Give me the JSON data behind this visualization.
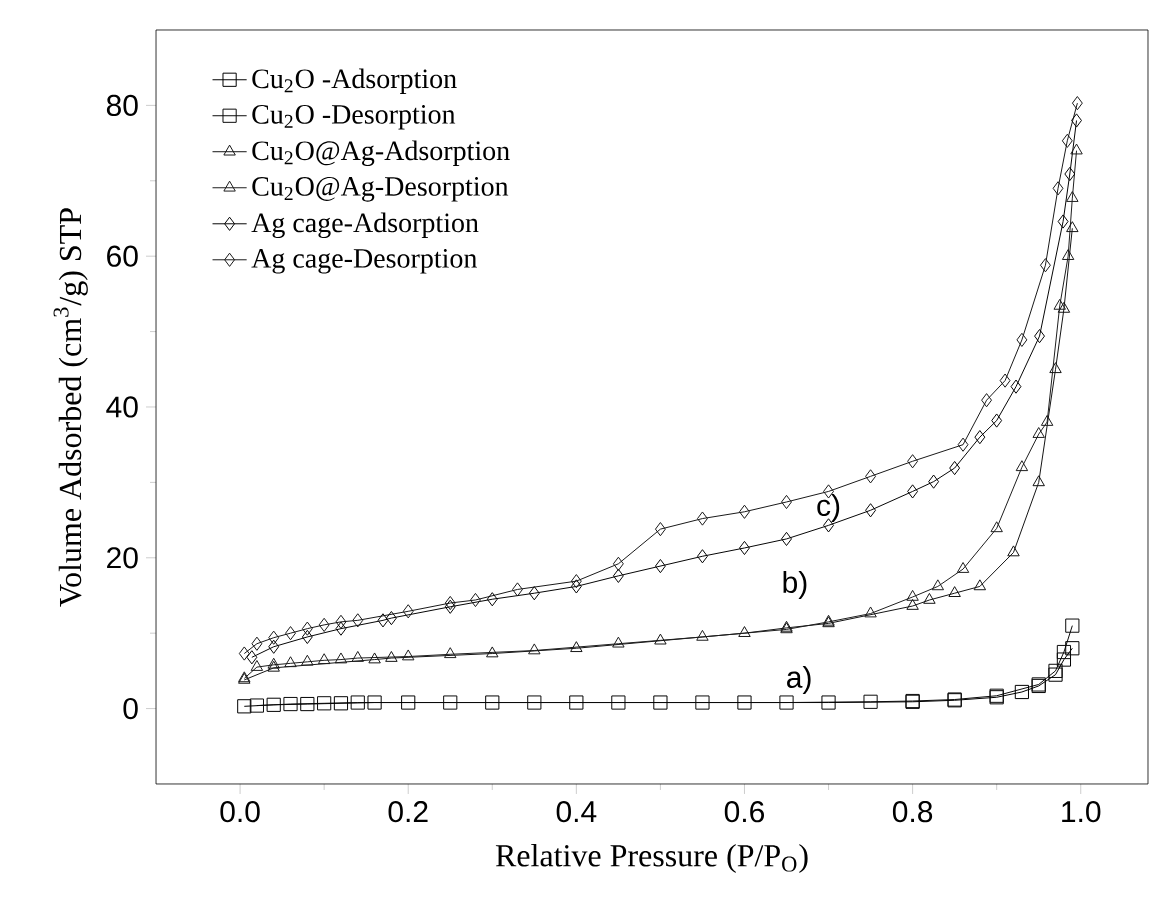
{
  "chart_data": {
    "type": "line",
    "xlabel": "Relative Pressure (P/P$_{O}$)",
    "ylabel": "Volume Adsorbed (cm$^{3}$/g) STP",
    "xlim": [
      -0.1,
      1.08
    ],
    "ylim": [
      -10,
      90
    ],
    "xticks": [
      {
        "value": 0,
        "label": "0.0"
      },
      0.2,
      0.4,
      0.6,
      0.8,
      {
        "value": 1,
        "label": "1.0"
      }
    ],
    "yticks": [
      0,
      20,
      40,
      60,
      80
    ],
    "legend": "top left",
    "grid": false,
    "annotations": [
      "a)",
      "b)",
      "c)"
    ],
    "series": [
      {
        "name": "Cu$_{2}$O -Adsorption",
        "color": "#000000",
        "marker": "square",
        "x": [
          0.005,
          0.04,
          0.08,
          0.12,
          0.16,
          0.2,
          0.3,
          0.4,
          0.5,
          0.6,
          0.7,
          0.8,
          0.85,
          0.9,
          0.93,
          0.95,
          0.97,
          0.98,
          0.99
        ],
        "values": [
          0.3,
          0.5,
          0.6,
          0.7,
          0.8,
          0.8,
          0.8,
          0.8,
          0.8,
          0.8,
          0.8,
          0.9,
          1.1,
          1.5,
          2.2,
          3,
          4.5,
          6.5,
          8
        ]
      },
      {
        "name": "Cu$_{2}$O -Desorption",
        "color": "#0a0a0a",
        "marker": "square",
        "x": [
          0.02,
          0.06,
          0.1,
          0.14,
          0.25,
          0.35,
          0.45,
          0.55,
          0.65,
          0.75,
          0.8,
          0.85,
          0.9,
          0.95,
          0.97,
          0.98,
          0.99
        ],
        "values": [
          0.4,
          0.6,
          0.7,
          0.8,
          0.8,
          0.8,
          0.8,
          0.8,
          0.8,
          0.9,
          1,
          1.2,
          1.7,
          3.2,
          5,
          7.5,
          11
        ]
      },
      {
        "name": "Cu$_{2}$O@Ag-Adsorption",
        "color": "#141414",
        "marker": "triangle",
        "x": [
          0.005,
          0.04,
          0.16,
          0.18,
          0.3,
          0.4,
          0.5,
          0.6,
          0.65,
          0.7,
          0.8,
          0.82,
          0.85,
          0.88,
          0.92,
          0.95,
          0.97,
          0.98,
          0.99
        ],
        "values": [
          3.8,
          5.4,
          6.5,
          6.7,
          7.3,
          8,
          9,
          10,
          10.7,
          11.3,
          13.6,
          14.4,
          15.3,
          16.2,
          20.7,
          30,
          45,
          53,
          63.7
        ]
      },
      {
        "name": "Cu$_{2}$O@Ag-Desorption",
        "color": "#1e1e1e",
        "marker": "triangle",
        "x": [
          0.005,
          0.02,
          0.04,
          0.06,
          0.08,
          0.1,
          0.12,
          0.14,
          0.2,
          0.25,
          0.35,
          0.45,
          0.55,
          0.65,
          0.7,
          0.75,
          0.8,
          0.83,
          0.86,
          0.9,
          0.93,
          0.95,
          0.96,
          0.975,
          0.985,
          0.99,
          0.995
        ],
        "values": [
          4,
          5.5,
          5.8,
          6,
          6.2,
          6.4,
          6.5,
          6.7,
          6.9,
          7.2,
          7.7,
          8.6,
          9.5,
          10.5,
          11.5,
          12.6,
          14.8,
          16.2,
          18.5,
          23.9,
          32,
          36.4,
          38,
          53.4,
          60,
          67.7,
          74
        ]
      },
      {
        "name": "Ag cage-Adsorption",
        "color": "#050505",
        "marker": "diamond",
        "x": [
          0.014,
          0.04,
          0.08,
          0.12,
          0.17,
          0.18,
          0.25,
          0.3,
          0.35,
          0.4,
          0.45,
          0.5,
          0.55,
          0.6,
          0.65,
          0.7,
          0.75,
          0.8,
          0.825,
          0.85,
          0.88,
          0.9,
          0.923,
          0.951,
          0.979,
          0.987,
          0.995
        ],
        "values": [
          6.8,
          8.2,
          9.5,
          10.6,
          11.7,
          12,
          13.5,
          14.5,
          15.3,
          16.2,
          17.6,
          18.9,
          20.2,
          21.3,
          22.5,
          24.3,
          26.3,
          28.8,
          30.1,
          31.9,
          36,
          38.2,
          42.7,
          49.4,
          64.6,
          70.9,
          78
        ]
      },
      {
        "name": "Ag cage-Desorption",
        "color": "#191919",
        "marker": "diamond",
        "x": [
          0.005,
          0.02,
          0.04,
          0.06,
          0.08,
          0.1,
          0.12,
          0.14,
          0.2,
          0.25,
          0.28,
          0.33,
          0.4,
          0.45,
          0.5,
          0.55,
          0.6,
          0.65,
          0.7,
          0.75,
          0.8,
          0.86,
          0.888,
          0.91,
          0.93,
          0.958,
          0.973,
          0.984,
          0.996
        ],
        "values": [
          7.3,
          8.6,
          9.4,
          10,
          10.6,
          11.1,
          11.5,
          11.7,
          12.9,
          14,
          14.4,
          15.8,
          16.9,
          19.2,
          23.8,
          25.2,
          26.1,
          27.4,
          28.8,
          30.8,
          32.8,
          35,
          40.9,
          43.5,
          48.9,
          58.8,
          69,
          75.3,
          80.3
        ]
      }
    ]
  }
}
